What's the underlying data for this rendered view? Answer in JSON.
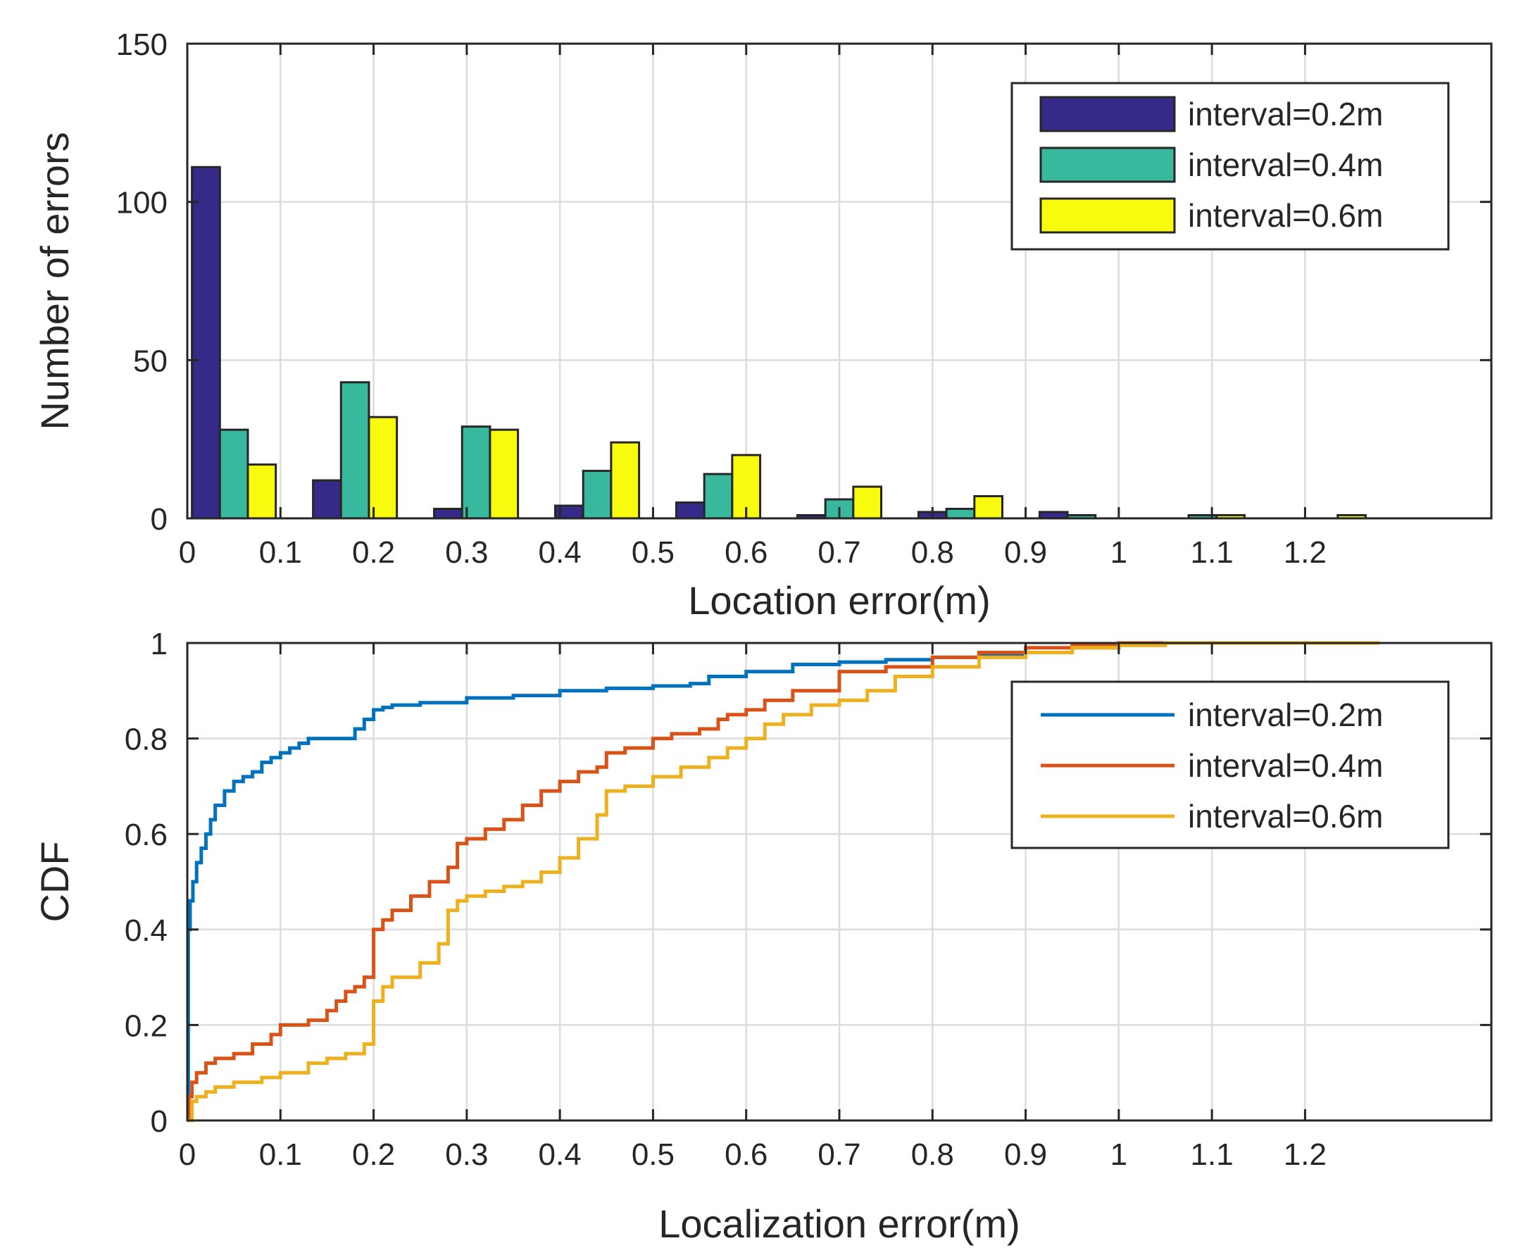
{
  "chart_data": [
    {
      "type": "bar",
      "xlabel": "Location error(m)",
      "ylabel": "Number of errors",
      "xlim": [
        0,
        1.4
      ],
      "ylim": [
        0,
        150
      ],
      "xticks": [
        "0",
        "0.1",
        "0.2",
        "0.3",
        "0.4",
        "0.5",
        "0.6",
        "0.7",
        "0.8",
        "0.9",
        "1",
        "1.1",
        "1.2"
      ],
      "yticks": [
        "0",
        "50",
        "100",
        "150"
      ],
      "grid": true,
      "legend_position": "top-right",
      "bin_centers": [
        0.05,
        0.18,
        0.31,
        0.44,
        0.57,
        0.7,
        0.83,
        0.96,
        1.09,
        1.22
      ],
      "series": [
        {
          "name": "interval=0.2m",
          "color": "#352a87",
          "values": [
            111,
            12,
            3,
            4,
            5,
            1,
            2,
            2,
            0,
            0
          ]
        },
        {
          "name": "interval=0.4m",
          "color": "#38b99e",
          "values": [
            28,
            43,
            29,
            15,
            14,
            6,
            3,
            1,
            1,
            0
          ]
        },
        {
          "name": "interval=0.6m",
          "color": "#f9fb0e",
          "values": [
            17,
            32,
            28,
            24,
            20,
            10,
            7,
            0,
            1,
            1
          ]
        }
      ]
    },
    {
      "type": "line",
      "xlabel": "Localization error(m)",
      "ylabel": "CDF",
      "xlim": [
        0,
        1.4
      ],
      "ylim": [
        0,
        1
      ],
      "xticks": [
        "0",
        "0.1",
        "0.2",
        "0.3",
        "0.4",
        "0.5",
        "0.6",
        "0.7",
        "0.8",
        "0.9",
        "1",
        "1.1",
        "1.2"
      ],
      "yticks": [
        "0",
        "0.2",
        "0.4",
        "0.6",
        "0.8",
        "1"
      ],
      "grid": true,
      "legend_position": "top-right",
      "series": [
        {
          "name": "interval=0.2m",
          "color": "#0072bd",
          "x": [
            0,
            0.001,
            0.003,
            0.006,
            0.01,
            0.015,
            0.02,
            0.025,
            0.03,
            0.04,
            0.05,
            0.06,
            0.07,
            0.08,
            0.09,
            0.1,
            0.11,
            0.12,
            0.13,
            0.14,
            0.15,
            0.17,
            0.18,
            0.19,
            0.2,
            0.21,
            0.22,
            0.25,
            0.3,
            0.35,
            0.4,
            0.45,
            0.5,
            0.54,
            0.56,
            0.6,
            0.65,
            0.7,
            0.75,
            0.8,
            0.85,
            0.9,
            0.95,
            1.0,
            1.05,
            1.1,
            1.15
          ],
          "y": [
            0,
            0.4,
            0.46,
            0.5,
            0.54,
            0.57,
            0.6,
            0.63,
            0.66,
            0.69,
            0.71,
            0.72,
            0.73,
            0.75,
            0.76,
            0.77,
            0.78,
            0.79,
            0.8,
            0.8,
            0.8,
            0.8,
            0.82,
            0.84,
            0.86,
            0.865,
            0.87,
            0.875,
            0.885,
            0.89,
            0.9,
            0.905,
            0.91,
            0.915,
            0.93,
            0.94,
            0.955,
            0.96,
            0.965,
            0.97,
            0.975,
            0.98,
            0.99,
            1.0,
            1.0,
            1.0,
            1.0
          ]
        },
        {
          "name": "interval=0.4m",
          "color": "#d95319",
          "x": [
            0,
            0.002,
            0.005,
            0.01,
            0.02,
            0.03,
            0.05,
            0.07,
            0.09,
            0.1,
            0.13,
            0.15,
            0.16,
            0.17,
            0.18,
            0.19,
            0.2,
            0.21,
            0.22,
            0.24,
            0.26,
            0.28,
            0.29,
            0.3,
            0.32,
            0.34,
            0.36,
            0.38,
            0.4,
            0.42,
            0.44,
            0.45,
            0.47,
            0.5,
            0.52,
            0.55,
            0.57,
            0.58,
            0.6,
            0.62,
            0.65,
            0.7,
            0.75,
            0.8,
            0.85,
            0.9,
            0.95,
            1.0,
            1.05,
            1.1,
            1.12
          ],
          "y": [
            0,
            0.05,
            0.08,
            0.1,
            0.12,
            0.13,
            0.14,
            0.16,
            0.18,
            0.2,
            0.21,
            0.23,
            0.25,
            0.27,
            0.28,
            0.3,
            0.4,
            0.42,
            0.44,
            0.47,
            0.5,
            0.53,
            0.58,
            0.59,
            0.61,
            0.63,
            0.66,
            0.69,
            0.71,
            0.73,
            0.74,
            0.77,
            0.78,
            0.8,
            0.81,
            0.82,
            0.84,
            0.85,
            0.86,
            0.88,
            0.9,
            0.94,
            0.95,
            0.97,
            0.98,
            0.99,
            0.995,
            1.0,
            1.0,
            1.0,
            1.0
          ]
        },
        {
          "name": "interval=0.6m",
          "color": "#edb120",
          "x": [
            0,
            0.005,
            0.01,
            0.02,
            0.03,
            0.05,
            0.08,
            0.1,
            0.13,
            0.15,
            0.17,
            0.19,
            0.2,
            0.21,
            0.22,
            0.25,
            0.27,
            0.28,
            0.29,
            0.3,
            0.32,
            0.34,
            0.36,
            0.38,
            0.4,
            0.42,
            0.44,
            0.45,
            0.47,
            0.5,
            0.53,
            0.56,
            0.58,
            0.6,
            0.62,
            0.64,
            0.67,
            0.7,
            0.73,
            0.76,
            0.8,
            0.85,
            0.9,
            0.95,
            1.0,
            1.05,
            1.1,
            1.15,
            1.2,
            1.25,
            1.28
          ],
          "y": [
            0,
            0.04,
            0.05,
            0.06,
            0.07,
            0.08,
            0.09,
            0.1,
            0.12,
            0.13,
            0.14,
            0.16,
            0.25,
            0.28,
            0.3,
            0.33,
            0.37,
            0.44,
            0.46,
            0.47,
            0.48,
            0.49,
            0.5,
            0.52,
            0.55,
            0.59,
            0.64,
            0.69,
            0.7,
            0.72,
            0.74,
            0.76,
            0.78,
            0.8,
            0.83,
            0.85,
            0.87,
            0.88,
            0.9,
            0.93,
            0.95,
            0.97,
            0.98,
            0.99,
            0.995,
            1.0,
            1.0,
            1.0,
            1.0,
            1.0,
            1.0
          ]
        }
      ]
    }
  ]
}
